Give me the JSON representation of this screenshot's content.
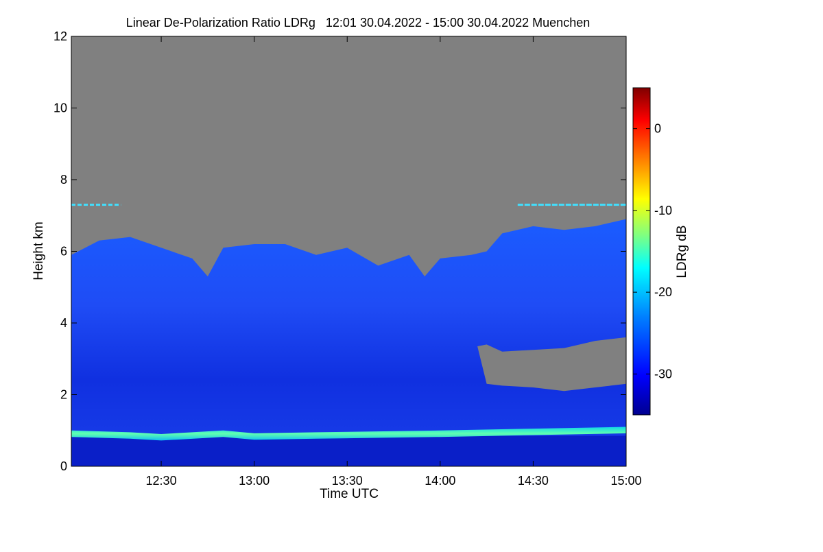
{
  "chart_data": {
    "type": "heatmap",
    "title": "Linear De-Polarization Ratio LDRg   12:01 30.04.2022 - 15:00 30.04.2022 Muenchen",
    "xlabel": "Time UTC",
    "ylabel": "Height km",
    "colorbar_label": "LDRg dB",
    "x_range_minutes_utc": [
      721,
      900
    ],
    "y_range_km": [
      0,
      12
    ],
    "x_ticks": [
      {
        "label": "12:30",
        "minutes": 750
      },
      {
        "label": "13:00",
        "minutes": 780
      },
      {
        "label": "13:30",
        "minutes": 810
      },
      {
        "label": "14:00",
        "minutes": 840
      },
      {
        "label": "14:30",
        "minutes": 870
      },
      {
        "label": "15:00",
        "minutes": 900
      }
    ],
    "y_ticks": [
      {
        "label": "0",
        "value": 0
      },
      {
        "label": "2",
        "value": 2
      },
      {
        "label": "4",
        "value": 4
      },
      {
        "label": "6",
        "value": 6
      },
      {
        "label": "8",
        "value": 8
      },
      {
        "label": "10",
        "value": 10
      },
      {
        "label": "12",
        "value": 12
      }
    ],
    "colorbar_range_db": [
      -35,
      5
    ],
    "colorbar_ticks": [
      {
        "label": "0",
        "value": 0
      },
      {
        "label": "-10",
        "value": -10
      },
      {
        "label": "-20",
        "value": -20
      },
      {
        "label": "-30",
        "value": -30
      }
    ],
    "no_data_color": "#808080",
    "colormap": [
      "#00008f",
      "#0000ff",
      "#0080ff",
      "#00ffff",
      "#80ff80",
      "#ffff00",
      "#ff8000",
      "#ff0000",
      "#800000"
    ],
    "signal_top_km": [
      [
        721,
        5.9
      ],
      [
        730,
        6.3
      ],
      [
        740,
        6.4
      ],
      [
        750,
        6.1
      ],
      [
        760,
        5.8
      ],
      [
        765,
        5.3
      ],
      [
        770,
        6.1
      ],
      [
        780,
        6.2
      ],
      [
        790,
        6.2
      ],
      [
        800,
        5.9
      ],
      [
        810,
        6.1
      ],
      [
        820,
        5.6
      ],
      [
        830,
        5.9
      ],
      [
        835,
        5.3
      ],
      [
        840,
        5.8
      ],
      [
        850,
        5.9
      ],
      [
        855,
        6.0
      ],
      [
        860,
        6.5
      ],
      [
        870,
        6.7
      ],
      [
        880,
        6.6
      ],
      [
        890,
        6.7
      ],
      [
        900,
        6.9
      ]
    ],
    "lower_gap_km": [
      [
        852,
        3.35,
        3.35
      ],
      [
        855,
        2.3,
        3.4
      ],
      [
        860,
        2.25,
        3.2
      ],
      [
        870,
        2.2,
        3.25
      ],
      [
        880,
        2.1,
        3.3
      ],
      [
        890,
        2.2,
        3.5
      ],
      [
        900,
        2.3,
        3.6
      ]
    ],
    "boundary_layer_top_km": [
      [
        721,
        1.0
      ],
      [
        740,
        0.95
      ],
      [
        750,
        0.9
      ],
      [
        770,
        1.0
      ],
      [
        780,
        0.92
      ],
      [
        800,
        0.95
      ],
      [
        840,
        1.0
      ],
      [
        870,
        1.05
      ],
      [
        900,
        1.1
      ]
    ],
    "high_aerosol_layer_km": 7.3
  }
}
